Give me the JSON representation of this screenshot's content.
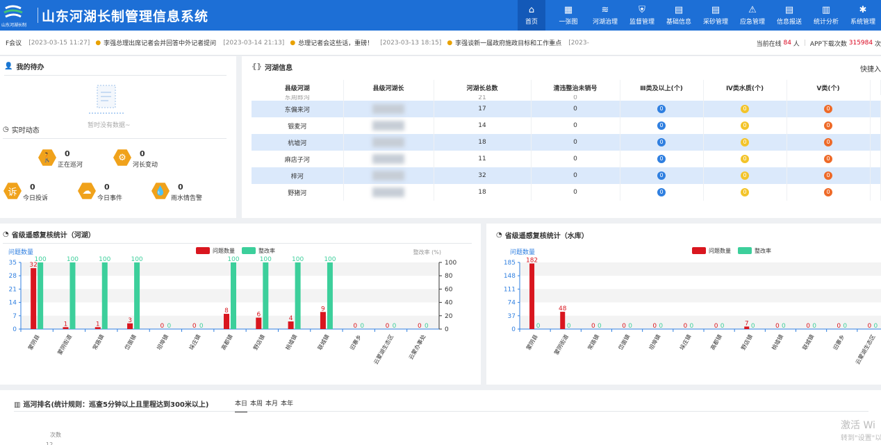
{
  "header": {
    "title": "山东河湖长制管理信息系统",
    "logo_text": "山东河湖长制"
  },
  "nav": [
    {
      "icon": "home-icon",
      "glyph": "⌂",
      "label": "首页",
      "active": true
    },
    {
      "icon": "map-icon",
      "glyph": "▦",
      "label": "一张图"
    },
    {
      "icon": "river-icon",
      "glyph": "≋",
      "label": "河湖治理"
    },
    {
      "icon": "shield-icon",
      "glyph": "⛨",
      "label": "监督管理"
    },
    {
      "icon": "document-icon",
      "glyph": "▤",
      "label": "基础信息"
    },
    {
      "icon": "document-icon",
      "glyph": "▤",
      "label": "采砂管理"
    },
    {
      "icon": "alarm-icon",
      "glyph": "⚠",
      "label": "应急管理"
    },
    {
      "icon": "document-icon",
      "glyph": "▤",
      "label": "信息报送"
    },
    {
      "icon": "chart-icon",
      "glyph": "▥",
      "label": "统计分析"
    },
    {
      "icon": "gear-icon",
      "glyph": "✱",
      "label": "系统管理"
    }
  ],
  "ticker": {
    "items": [
      {
        "date": "",
        "text": "F会议"
      },
      {
        "date": "[2023-03-15 11:27]",
        "text": "李强总理出席记者会并回答中外记者提问"
      },
      {
        "date": "[2023-03-14 21:13]",
        "text": "总理记者会这些话，重磅！"
      },
      {
        "date": "[2023-03-13 18:15]",
        "text": "李强谈新一届政府施政目标和工作重点"
      },
      {
        "date": "[2023-",
        "text": ""
      }
    ],
    "online_label": "当前在线",
    "online_count": "84",
    "online_unit": "人",
    "download_label": "APP下载次数",
    "download_count": "315984",
    "download_unit": "次"
  },
  "todo": {
    "title": "我的待办",
    "empty": "暂时没有数据~"
  },
  "realtime": {
    "title": "实时动态",
    "stats": [
      {
        "value": "0",
        "label": "正在巡河",
        "color": "#f0a21b",
        "glyph": "🚶",
        "icon": "walking-person-icon"
      },
      {
        "value": "0",
        "label": "河长变动",
        "color": "#f0a21b",
        "glyph": "⚙",
        "icon": "org-change-icon"
      },
      {
        "value": "0",
        "label": "今日投诉",
        "color": "#f0a21b",
        "glyph": "诉",
        "icon": "complaint-icon"
      },
      {
        "value": "0",
        "label": "今日事件",
        "color": "#f0a21b",
        "glyph": "☁",
        "icon": "event-icon"
      },
      {
        "value": "0",
        "label": "雨水情告警",
        "color": "#f0a21b",
        "glyph": "💧",
        "icon": "rain-alarm-icon"
      }
    ]
  },
  "river_info": {
    "title": "河湖信息",
    "quick": "快捷入",
    "columns": [
      "县级河湖",
      "县级河湖长",
      "河湖长总数",
      "清违整治未销号",
      "Ⅲ类及以上(个)",
      "Ⅳ类水质(个)",
      "Ⅴ类(个)"
    ],
    "partial_top": {
      "name": "东周郎沟",
      "count": "21",
      "cleanup": "0"
    },
    "rows": [
      {
        "name": "东偏来河",
        "total": "17",
        "cleanup": "0",
        "c3": "0",
        "c4": "0",
        "c5": "0"
      },
      {
        "name": "银麦河",
        "total": "14",
        "cleanup": "0",
        "c3": "0",
        "c4": "0",
        "c5": "0"
      },
      {
        "name": "杭墟河",
        "total": "18",
        "cleanup": "0",
        "c3": "0",
        "c4": "0",
        "c5": "0"
      },
      {
        "name": "麻店子河",
        "total": "11",
        "cleanup": "0",
        "c3": "0",
        "c4": "0",
        "c5": "0"
      },
      {
        "name": "梓河",
        "total": "32",
        "cleanup": "0",
        "c3": "0",
        "c4": "0",
        "c5": "0"
      },
      {
        "name": "野猪河",
        "total": "18",
        "cleanup": "0",
        "c3": "0",
        "c4": "0",
        "c5": "0"
      }
    ],
    "colors": {
      "c3": "#2f7fe0",
      "c4": "#f3c42a",
      "c5": "#ee6a28"
    }
  },
  "patrol": {
    "title": "巡河排名(统计规则：巡查5分钟以上且里程达到300米以上)",
    "tabs": [
      "本日",
      "本周",
      "本月",
      "本年"
    ],
    "ylabel": "次数",
    "partial_tick": "12"
  },
  "watermark": {
    "line1": "激活 Wi",
    "line2": "转到\"设置\"以"
  },
  "chart_data": [
    {
      "type": "bar",
      "title": "省级遥感复核统计（河湖）",
      "categories": [
        "蒙阴县",
        "蒙阴街道",
        "常路镇",
        "岱崮镇",
        "坦埠镇",
        "垛庄镇",
        "高都镇",
        "野店镇",
        "桃墟镇",
        "联城镇",
        "旧寨乡",
        "云蒙湖生态区",
        "云蒙办事处"
      ],
      "series": [
        {
          "name": "问题数量",
          "color": "#d9161f",
          "values": [
            32,
            1,
            1,
            3,
            0,
            0,
            8,
            6,
            4,
            9,
            0,
            0,
            0
          ]
        },
        {
          "name": "整改率",
          "color": "#3ccf9b",
          "axis": "right",
          "values": [
            100,
            100,
            100,
            100,
            0,
            0,
            100,
            100,
            100,
            100,
            0,
            0,
            0
          ]
        }
      ],
      "ylabel": "问题数量",
      "y2label": "整改率 (%)",
      "ylim": [
        0,
        35
      ],
      "y2lim": [
        0,
        100
      ],
      "yticks": [
        0,
        7,
        14,
        21,
        28,
        35
      ],
      "y2ticks": [
        0,
        20,
        40,
        60,
        80,
        100
      ],
      "legend": "top-center"
    },
    {
      "type": "bar",
      "title": "省级遥感复核统计（水库）",
      "categories": [
        "蒙阴县",
        "蒙阴街道",
        "常路镇",
        "岱崮镇",
        "坦埠镇",
        "垛庄镇",
        "高都镇",
        "野店镇",
        "桃墟镇",
        "联城镇",
        "旧寨乡",
        "云蒙湖生态区"
      ],
      "series": [
        {
          "name": "问题数量",
          "color": "#d9161f",
          "values": [
            182,
            48,
            0,
            0,
            0,
            0,
            0,
            7,
            0,
            0,
            0,
            0
          ]
        },
        {
          "name": "整改率",
          "color": "#3ccf9b",
          "values": [
            0,
            0,
            0,
            0,
            0,
            0,
            0,
            0,
            0,
            0,
            0,
            0
          ]
        }
      ],
      "ylabel": "问题数量",
      "ylim": [
        0,
        185
      ],
      "yticks": [
        0,
        37,
        74,
        111,
        148,
        185
      ],
      "legend": "top-center"
    }
  ]
}
